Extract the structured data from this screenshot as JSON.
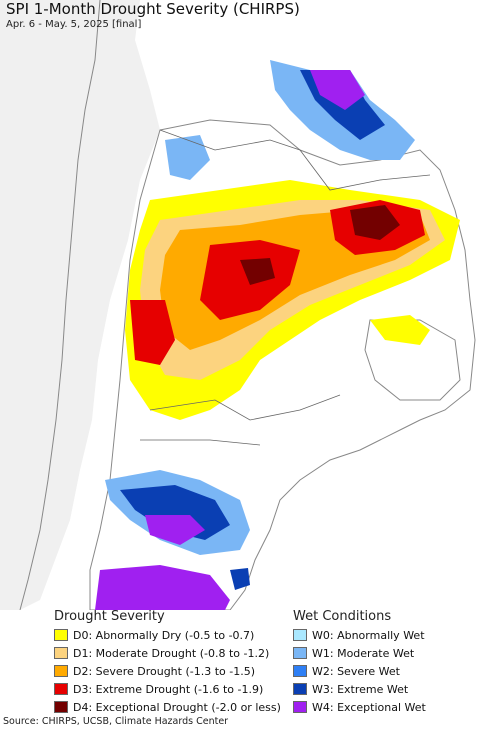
{
  "title": "SPI 1-Month Drought Severity (CHIRPS)",
  "subtitle": "Apr. 6 - May. 5, 2025 [final]",
  "legend": {
    "drought_heading": "Drought Severity",
    "wet_heading": "Wet Conditions",
    "drought": [
      {
        "label": "D0: Abnormally Dry (-0.5 to -0.7)",
        "color": "#ffff00"
      },
      {
        "label": "D1: Moderate Drought (-0.8 to -1.2)",
        "color": "#fcd37f"
      },
      {
        "label": "D2: Severe Drought (-1.3 to -1.5)",
        "color": "#ffaa00"
      },
      {
        "label": "D3: Extreme Drought (-1.6 to -1.9)",
        "color": "#e60000"
      },
      {
        "label": "D4: Exceptional Drought (-2.0 or less)",
        "color": "#730000"
      }
    ],
    "wet": [
      {
        "label": "W0: Abnormally Wet",
        "color": "#aae8ff"
      },
      {
        "label": "W1: Moderate Wet",
        "color": "#7ab6f5"
      },
      {
        "label": "W2: Severe Wet",
        "color": "#2e7ff5"
      },
      {
        "label": "W3: Extreme Wet",
        "color": "#0a3fb3"
      },
      {
        "label": "W4: Exceptional Wet",
        "color": "#a020f0"
      }
    ]
  },
  "source": "Source: CHIRPS, UCSB, Climate Hazards Center"
}
